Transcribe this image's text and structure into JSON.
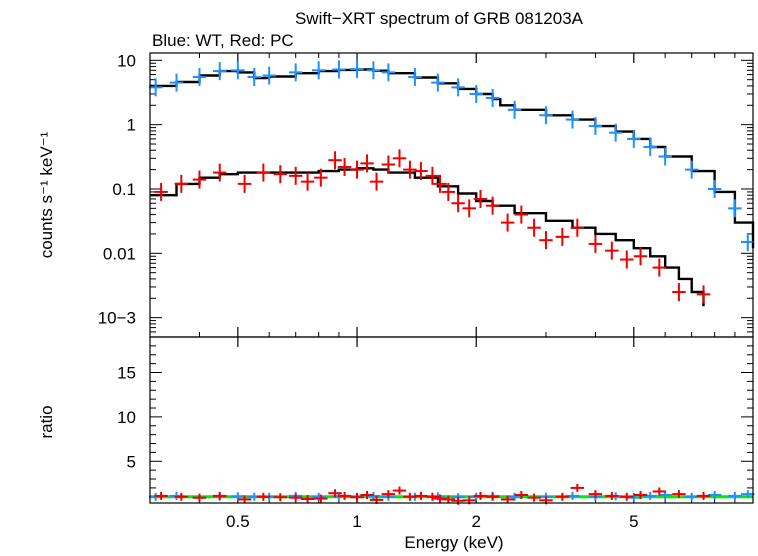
{
  "chart_data": {
    "type": "scatter",
    "title": "Swift−XRT spectrum of GRB 081203A",
    "subtitle": "Blue: WT, Red: PC",
    "xlabel": "Energy (keV)",
    "x_scale": "log",
    "xlim": [
      0.3,
      10
    ],
    "x_ticks": [
      "0.5",
      "1",
      "2",
      "5"
    ],
    "x_tick_values": [
      0.5,
      1,
      2,
      5
    ],
    "top_panel": {
      "ylabel": "counts s⁻¹ keV⁻¹",
      "y_scale": "log",
      "ylim": [
        0.0005,
        13
      ],
      "y_ticks": [
        "10",
        "1",
        "0.1",
        "0.01",
        "10−3"
      ],
      "y_tick_values": [
        10,
        1,
        0.1,
        0.01,
        0.001
      ],
      "series": [
        {
          "color": "#1e90ff",
          "x": [
            0.31,
            0.35,
            0.4,
            0.45,
            0.5,
            0.55,
            0.6,
            0.7,
            0.8,
            0.9,
            1.0,
            1.1,
            1.2,
            1.4,
            1.6,
            1.8,
            2.0,
            2.2,
            2.5,
            3.0,
            3.5,
            4.0,
            4.5,
            5.0,
            5.5,
            6.0,
            7.0,
            8.0,
            9.0,
            9.7
          ],
          "y": [
            3.8,
            4.5,
            5.5,
            6.8,
            7.0,
            5.5,
            5.8,
            6.5,
            7.0,
            7.2,
            7.3,
            7.0,
            6.5,
            5.5,
            4.5,
            3.8,
            3.0,
            2.6,
            1.7,
            1.4,
            1.2,
            0.95,
            0.75,
            0.6,
            0.45,
            0.32,
            0.2,
            0.1,
            0.05,
            0.015
          ],
          "model_x": [
            0.3,
            0.35,
            0.4,
            0.45,
            0.5,
            0.55,
            0.6,
            0.7,
            0.8,
            0.9,
            1.0,
            1.1,
            1.2,
            1.4,
            1.6,
            1.8,
            2.0,
            2.2,
            2.3,
            2.5,
            3.0,
            3.5,
            4.0,
            4.5,
            5.0,
            5.5,
            6.0,
            7.0,
            8.0,
            9.0,
            10.0
          ],
          "model_y": [
            4.0,
            4.6,
            5.8,
            6.8,
            6.5,
            5.3,
            5.6,
            6.3,
            6.8,
            7.1,
            7.2,
            6.9,
            6.3,
            5.4,
            4.4,
            3.6,
            3.0,
            2.5,
            2.0,
            1.7,
            1.4,
            1.2,
            0.95,
            0.78,
            0.6,
            0.45,
            0.32,
            0.19,
            0.09,
            0.03,
            0.012
          ]
        },
        {
          "color": "#ee0000",
          "x": [
            0.32,
            0.36,
            0.4,
            0.45,
            0.52,
            0.58,
            0.64,
            0.7,
            0.75,
            0.81,
            0.88,
            0.93,
            1.0,
            1.06,
            1.12,
            1.2,
            1.28,
            1.36,
            1.45,
            1.55,
            1.62,
            1.7,
            1.8,
            1.92,
            2.05,
            2.2,
            2.4,
            2.6,
            2.8,
            3.0,
            3.3,
            3.6,
            4.0,
            4.4,
            4.8,
            5.2,
            5.8,
            6.5,
            7.5
          ],
          "y": [
            0.09,
            0.12,
            0.14,
            0.18,
            0.12,
            0.18,
            0.17,
            0.16,
            0.13,
            0.15,
            0.28,
            0.22,
            0.2,
            0.25,
            0.13,
            0.24,
            0.3,
            0.2,
            0.19,
            0.16,
            0.12,
            0.09,
            0.06,
            0.05,
            0.07,
            0.055,
            0.03,
            0.04,
            0.025,
            0.016,
            0.018,
            0.025,
            0.014,
            0.011,
            0.008,
            0.009,
            0.006,
            0.0025,
            0.0023
          ],
          "model_x": [
            0.3,
            0.35,
            0.4,
            0.45,
            0.5,
            0.6,
            0.7,
            0.8,
            0.9,
            1.0,
            1.1,
            1.2,
            1.4,
            1.6,
            1.8,
            2.0,
            2.2,
            2.5,
            3.0,
            3.5,
            4.0,
            4.5,
            5.0,
            5.5,
            6.0,
            6.5,
            7.0,
            7.5
          ],
          "model_y": [
            0.08,
            0.12,
            0.15,
            0.17,
            0.18,
            0.18,
            0.18,
            0.19,
            0.2,
            0.21,
            0.2,
            0.18,
            0.15,
            0.11,
            0.085,
            0.065,
            0.055,
            0.042,
            0.032,
            0.025,
            0.02,
            0.016,
            0.012,
            0.009,
            0.006,
            0.004,
            0.0025,
            0.0015
          ]
        }
      ]
    },
    "bottom_panel": {
      "ylabel": "ratio",
      "y_scale": "linear",
      "ylim": [
        0.3,
        19
      ],
      "y_ticks": [
        "5",
        "10",
        "15"
      ],
      "y_tick_values": [
        5,
        10,
        15
      ],
      "reference_line": 1,
      "reference_line_color": "#00ee00",
      "series": [
        {
          "color": "#1e90ff",
          "x": [
            0.31,
            0.35,
            0.4,
            0.45,
            0.5,
            0.55,
            0.6,
            0.7,
            0.8,
            0.9,
            1.0,
            1.1,
            1.2,
            1.4,
            1.6,
            1.8,
            2.0,
            2.2,
            2.5,
            3.0,
            3.5,
            4.0,
            4.5,
            5.0,
            5.5,
            6.0,
            7.0,
            8.0,
            9.0,
            9.7
          ],
          "y": [
            1.0,
            1.1,
            0.9,
            1.0,
            1.05,
            1.0,
            1.0,
            1.1,
            1.0,
            1.05,
            1.0,
            1.1,
            1.0,
            1.0,
            1.05,
            0.95,
            1.0,
            1.1,
            1.0,
            1.0,
            1.1,
            1.0,
            1.05,
            0.9,
            1.1,
            1.2,
            1.0,
            1.2,
            1.1,
            1.3
          ]
        },
        {
          "color": "#ee0000",
          "x": [
            0.32,
            0.36,
            0.4,
            0.45,
            0.52,
            0.58,
            0.64,
            0.7,
            0.75,
            0.81,
            0.88,
            0.93,
            1.0,
            1.06,
            1.12,
            1.2,
            1.28,
            1.36,
            1.45,
            1.55,
            1.62,
            1.7,
            1.8,
            1.92,
            2.05,
            2.2,
            2.4,
            2.6,
            2.8,
            3.0,
            3.3,
            3.6,
            4.0,
            4.4,
            4.8,
            5.2,
            5.8,
            6.5,
            7.5
          ],
          "y": [
            1.1,
            1.0,
            0.9,
            1.1,
            0.7,
            1.0,
            0.95,
            0.9,
            0.75,
            0.8,
            1.4,
            1.1,
            0.95,
            1.2,
            0.65,
            1.3,
            1.7,
            1.0,
            1.1,
            1.0,
            0.8,
            0.7,
            0.55,
            0.6,
            1.1,
            1.0,
            0.7,
            1.2,
            0.9,
            0.6,
            1.0,
            2.0,
            1.3,
            1.1,
            1.0,
            1.2,
            1.6,
            1.3,
            1.1
          ]
        }
      ]
    }
  }
}
